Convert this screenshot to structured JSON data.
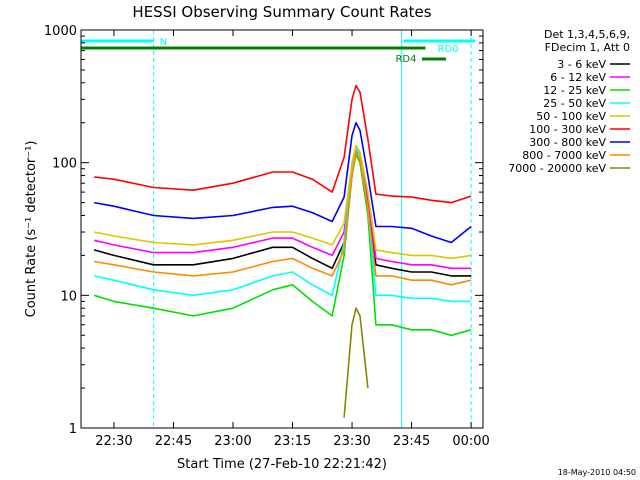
{
  "chart_data": {
    "type": "line",
    "title": "HESSI Observing Summary Count Rates",
    "xlabel": "Start Time (27-Feb-10 22:21:42)",
    "ylabel": "Count Rate (s⁻¹ detector⁻¹)",
    "y_scale": "log",
    "ylim": [
      1,
      1000
    ],
    "xlim": [
      "22:21:42",
      "00:03:00"
    ],
    "x_ticks": [
      "22:30",
      "22:45",
      "23:00",
      "23:15",
      "23:30",
      "23:45",
      "00:00"
    ],
    "y_ticks": [
      "1",
      "10",
      "100",
      "1000"
    ],
    "timestamp": "18-May-2010 04:50",
    "legend": {
      "placement": "outside-right",
      "header": [
        "Det 1,3,4,5,6,9,",
        "FDecim 1, Att 0"
      ],
      "entries": [
        {
          "label": "3 - 6 keV",
          "color": "#000000"
        },
        {
          "label": "6 - 12 keV",
          "color": "#ff00ff"
        },
        {
          "label": "12 - 25 keV",
          "color": "#00e000"
        },
        {
          "label": "25 - 50 keV",
          "color": "#00ffff"
        },
        {
          "label": "50 - 100 keV",
          "color": "#d8c800"
        },
        {
          "label": "100 - 300 keV",
          "color": "#ff0000"
        },
        {
          "label": "300 - 800 keV",
          "color": "#0000ff"
        },
        {
          "label": "800 - 7000 keV",
          "color": "#ff8800"
        },
        {
          "label": "7000 - 20000 keV",
          "color": "#888800"
        }
      ]
    },
    "flags": [
      {
        "label": "N",
        "color": "#00ffff",
        "x_start": "22:21:42",
        "x_end": "22:40:00"
      },
      {
        "label": "RD0",
        "color": "#00ffff",
        "x_start": "23:43:00",
        "x_end": "00:01:00"
      },
      {
        "label": "RD4",
        "color": "#008000",
        "x_start": "22:21:42",
        "x_end": "23:48:30"
      }
    ],
    "vertical_markers": [
      {
        "time": "22:21:42",
        "style": "solid",
        "color": "#00ffff"
      },
      {
        "time": "22:40:00",
        "style": "dashed",
        "color": "#00ffff"
      },
      {
        "time": "23:42:30",
        "style": "solid",
        "color": "#00ffff"
      },
      {
        "time": "00:00:00",
        "style": "dashed",
        "color": "#00ffff"
      }
    ],
    "x": [
      "22:25",
      "22:30",
      "22:40",
      "22:50",
      "23:00",
      "23:10",
      "23:15",
      "23:20",
      "23:25",
      "23:28",
      "23:30",
      "23:31",
      "23:32",
      "23:34",
      "23:36",
      "23:40",
      "23:45",
      "23:50",
      "23:55",
      "00:00"
    ],
    "series": [
      {
        "name": "3 - 6 keV",
        "color": "#000000",
        "values": [
          22,
          20,
          17,
          17,
          19,
          23,
          23,
          19,
          16,
          25,
          80,
          120,
          110,
          50,
          17,
          16,
          15,
          15,
          14,
          14
        ]
      },
      {
        "name": "6 - 12 keV",
        "color": "#ff00ff",
        "values": [
          26,
          24,
          21,
          21,
          23,
          27,
          27,
          23,
          20,
          30,
          90,
          125,
          115,
          55,
          19,
          18,
          17,
          17,
          16,
          16
        ]
      },
      {
        "name": "12 - 25 keV",
        "color": "#00e000",
        "values": [
          10,
          9,
          8,
          7,
          8,
          11,
          12,
          9,
          7,
          20,
          80,
          115,
          100,
          40,
          6,
          6,
          5.5,
          5.5,
          5,
          5.5
        ]
      },
      {
        "name": "25 - 50 keV",
        "color": "#00ffff",
        "values": [
          14,
          13,
          11,
          10,
          11,
          14,
          15,
          12,
          10,
          25,
          90,
          130,
          110,
          45,
          10,
          10,
          9.5,
          9.5,
          9,
          9
        ]
      },
      {
        "name": "50 - 100 keV",
        "color": "#d8c800",
        "values": [
          30,
          28,
          25,
          24,
          26,
          30,
          30,
          27,
          24,
          35,
          100,
          135,
          120,
          60,
          22,
          21,
          20,
          20,
          19,
          20
        ]
      },
      {
        "name": "100 - 300 keV",
        "color": "#ff0000",
        "values": [
          78,
          75,
          65,
          62,
          70,
          85,
          85,
          75,
          60,
          110,
          300,
          380,
          340,
          150,
          58,
          56,
          55,
          52,
          50,
          56
        ]
      },
      {
        "name": "300 - 800 keV",
        "color": "#0000ff",
        "values": [
          50,
          47,
          40,
          38,
          40,
          46,
          47,
          42,
          36,
          55,
          160,
          200,
          175,
          80,
          33,
          33,
          32,
          28,
          25,
          33
        ]
      },
      {
        "name": "800 - 7000 keV",
        "color": "#ff8800",
        "values": [
          18,
          17,
          15,
          14,
          15,
          18,
          19,
          16,
          14,
          22,
          80,
          120,
          105,
          45,
          14,
          14,
          13,
          13,
          12,
          13
        ]
      },
      {
        "name": "7000 - 20000 keV",
        "color": "#888800",
        "values": [
          null,
          null,
          null,
          null,
          null,
          null,
          null,
          null,
          null,
          1.2,
          6,
          8,
          7,
          2,
          null,
          null,
          null,
          null,
          null,
          null
        ]
      }
    ]
  }
}
